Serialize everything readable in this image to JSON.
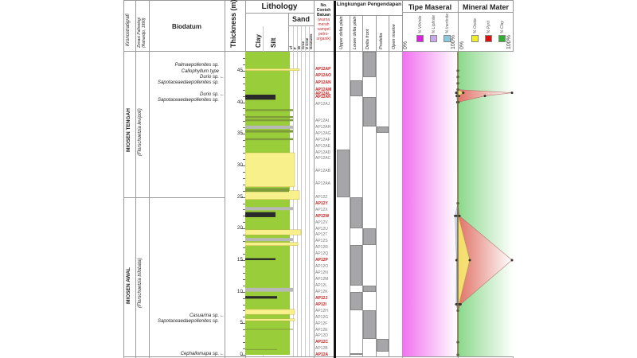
{
  "headers": {
    "kronostratigrafi": "Kronostratigrafi",
    "zonasi_line1": "Zonasi Palinologi",
    "zonasi_line2": "(Rahardjo, 1990)",
    "biodatum": "Biodatum",
    "thickness": "Thickness (m)",
    "lithology": "Lithology",
    "sand": "Sand",
    "clay": "Clay",
    "silt": "Silt",
    "sand_grades": [
      "vf",
      "F",
      "M",
      "Crse",
      "V Crse",
      "Granules"
    ],
    "sample_header": [
      "No.",
      "Contoh",
      "Batuan",
      "(warna",
      "merah",
      "sampel",
      "petro-",
      "organik)"
    ],
    "lingkungan": "Lingkungan Pengendapan",
    "env_columns": [
      "Upper delta plain",
      "Lower delta plain",
      "Delta front",
      "Prodelta",
      "Open marine"
    ],
    "tipe_maseral": "Tipe Maseral",
    "mineral_mater": "Mineral Mater"
  },
  "legend": {
    "maseral": [
      {
        "label": "% Vitrinite",
        "color": "#e020e0"
      },
      {
        "label": "% Liptinite",
        "color": "#c8a8e8"
      },
      {
        "label": "% Inertinite",
        "color": "#88c8e0"
      }
    ],
    "mineral": [
      {
        "label": "% Oxide",
        "color": "#f0f020"
      },
      {
        "label": "% Pyrit",
        "color": "#e01010"
      },
      {
        "label": "% Clay",
        "color": "#30b030"
      }
    ],
    "pct_min": "0%",
    "pct_max": "100%"
  },
  "chronostrat": [
    {
      "label": "MIOSEN TENGAH",
      "from_m": 25,
      "to_m": 48
    },
    {
      "label": "MIOSEN AWAL",
      "from_m": 0,
      "to_m": 25
    }
  ],
  "zonasi": [
    {
      "label": "(Florschuetzia levipoli)",
      "from_m": 25,
      "to_m": 48
    },
    {
      "label": "(Florschuetzia trilobata)",
      "from_m": 0,
      "to_m": 25
    }
  ],
  "biodatum": [
    {
      "text": "Palmaepollenites sp.",
      "depth": 45.8,
      "arrow": false
    },
    {
      "text": "Callophyllum type",
      "depth": 44.9,
      "arrow": false
    },
    {
      "text": "Durio sp.",
      "depth": 44.0,
      "arrow": true
    },
    {
      "text": "Sapotaceaedaepollenites sp.",
      "depth": 43.1,
      "arrow": false
    },
    {
      "text": "Durio sp.",
      "depth": 41.2,
      "arrow": true
    },
    {
      "text": "Sapotaceaedaepollenites sp.",
      "depth": 40.3,
      "arrow": false
    },
    {
      "text": "Casuarina sp.",
      "depth": 6.2,
      "arrow": true
    },
    {
      "text": "Sapotaceaedaepollenites sp.",
      "depth": 5.3,
      "arrow": false
    },
    {
      "text": "Cephallomapa sp.",
      "depth": 0.1,
      "arrow": true
    }
  ],
  "thickness_axis": {
    "min": 0,
    "max": 48,
    "ticks": [
      "0",
      "5",
      "10",
      "15",
      "20",
      "25",
      "30",
      "35",
      "40",
      "45"
    ]
  },
  "samples": [
    {
      "id": "AP12AP",
      "depth": 45.2,
      "red": true
    },
    {
      "id": "AP12AO",
      "depth": 44.1,
      "red": true
    },
    {
      "id": "AP12AN",
      "depth": 43.0,
      "red": true
    },
    {
      "id": "AP12AM",
      "depth": 41.9,
      "red": true
    },
    {
      "id": "AP12AL",
      "depth": 41.3,
      "red": true
    },
    {
      "id": "AP12AK",
      "depth": 40.7,
      "red": true
    },
    {
      "id": "AP12AJ",
      "depth": 39.6,
      "red": false
    },
    {
      "id": "AP12AI",
      "depth": 37.0,
      "red": false
    },
    {
      "id": "AP12AH",
      "depth": 36.0,
      "red": false
    },
    {
      "id": "AP12AG",
      "depth": 35.0,
      "red": false
    },
    {
      "id": "AP12AF",
      "depth": 34.0,
      "red": false
    },
    {
      "id": "AP12AE",
      "depth": 33.0,
      "red": false
    },
    {
      "id": "AP12AD",
      "depth": 32.0,
      "red": false
    },
    {
      "id": "AP12AC",
      "depth": 31.0,
      "red": false
    },
    {
      "id": "AP12AB",
      "depth": 29.0,
      "red": false
    },
    {
      "id": "AP12AA",
      "depth": 27.0,
      "red": false
    },
    {
      "id": "AP12Z",
      "depth": 24.9,
      "red": false
    },
    {
      "id": "AP12Y",
      "depth": 23.9,
      "red": true
    },
    {
      "id": "AP12X",
      "depth": 22.9,
      "red": false
    },
    {
      "id": "AP12W",
      "depth": 21.9,
      "red": true
    },
    {
      "id": "AP12V",
      "depth": 20.9,
      "red": false
    },
    {
      "id": "AP12U",
      "depth": 19.9,
      "red": false
    },
    {
      "id": "AP12T",
      "depth": 18.9,
      "red": false
    },
    {
      "id": "AP12S",
      "depth": 17.9,
      "red": false
    },
    {
      "id": "AP12R",
      "depth": 16.9,
      "red": false
    },
    {
      "id": "AP12Q",
      "depth": 15.9,
      "red": false
    },
    {
      "id": "AP12P",
      "depth": 14.9,
      "red": true
    },
    {
      "id": "AP12O",
      "depth": 13.9,
      "red": false
    },
    {
      "id": "AP12N",
      "depth": 12.9,
      "red": false
    },
    {
      "id": "AP12M",
      "depth": 11.9,
      "red": false
    },
    {
      "id": "AP12L",
      "depth": 10.9,
      "red": false
    },
    {
      "id": "AP12K",
      "depth": 9.9,
      "red": false
    },
    {
      "id": "AP12J",
      "depth": 8.9,
      "red": true
    },
    {
      "id": "AP12I",
      "depth": 7.9,
      "red": true
    },
    {
      "id": "AP12H",
      "depth": 6.9,
      "red": false
    },
    {
      "id": "AP12G",
      "depth": 5.9,
      "red": false
    },
    {
      "id": "AP12F",
      "depth": 4.9,
      "red": false
    },
    {
      "id": "AP12E",
      "depth": 3.9,
      "red": false
    },
    {
      "id": "AP12D",
      "depth": 2.9,
      "red": false
    },
    {
      "id": "AP12C",
      "depth": 1.9,
      "red": true
    },
    {
      "id": "AP12B",
      "depth": 0.9,
      "red": false
    },
    {
      "id": "AP12A",
      "depth": 0.0,
      "red": true
    }
  ],
  "environment_blocks": [
    {
      "col": 2,
      "from": 44.0,
      "to": 48.0
    },
    {
      "col": 1,
      "from": 41.0,
      "to": 43.5
    },
    {
      "col": 2,
      "from": 36.2,
      "to": 40.8
    },
    {
      "col": 3,
      "from": 35.2,
      "to": 36.2
    },
    {
      "col": 0,
      "from": 25.0,
      "to": 32.5
    },
    {
      "col": 1,
      "from": 20.0,
      "to": 25.0
    },
    {
      "col": 2,
      "from": 17.4,
      "to": 20.0
    },
    {
      "col": 1,
      "from": 11.0,
      "to": 17.4
    },
    {
      "col": 2,
      "from": 10.0,
      "to": 11.0
    },
    {
      "col": 1,
      "from": 7.0,
      "to": 10.0
    },
    {
      "col": 2,
      "from": 2.5,
      "to": 7.0
    },
    {
      "col": 3,
      "from": 0.5,
      "to": 2.5
    },
    {
      "col": 1,
      "from": 0.0,
      "to": 0.3
    }
  ],
  "chart_data": {
    "type": "area",
    "title": "Tipe Maseral / Mineral Mater",
    "ylabel": "Thickness (m)",
    "ylim": [
      0,
      48
    ],
    "xlim": [
      0,
      100
    ],
    "maseral_series": [
      {
        "name": "% Inertinite",
        "depth": [
          45,
          44,
          43,
          42,
          41.5,
          41,
          40,
          24,
          22,
          15,
          8,
          7,
          2,
          0
        ],
        "values": [
          0,
          0,
          0,
          0,
          6,
          4,
          2,
          0,
          10,
          5,
          6,
          0,
          0,
          0
        ]
      },
      {
        "name": "% Liptinite",
        "depth": [
          45,
          44,
          43,
          42,
          41.5,
          41,
          40,
          24,
          22,
          15,
          8,
          7,
          2,
          0
        ],
        "values": [
          0,
          0,
          0,
          0,
          3,
          2,
          1,
          0,
          3,
          3,
          3,
          0,
          0,
          0
        ]
      }
    ],
    "mineral_series": [
      {
        "name": "% Oxide",
        "depth": [
          45,
          44,
          43,
          42,
          41.5,
          41,
          40,
          24,
          22,
          15,
          8,
          7,
          2,
          0
        ],
        "values": [
          0,
          0,
          0,
          0,
          10,
          2,
          1,
          0,
          1,
          22,
          2,
          0,
          0,
          0
        ]
      },
      {
        "name": "% Pyrit",
        "depth": [
          45,
          44,
          43,
          42,
          41.5,
          41,
          40,
          24,
          22,
          15,
          8,
          7,
          2,
          0
        ],
        "values": [
          0,
          0,
          0,
          0,
          100,
          50,
          0,
          0,
          3,
          100,
          5,
          0,
          0,
          0
        ]
      }
    ]
  }
}
